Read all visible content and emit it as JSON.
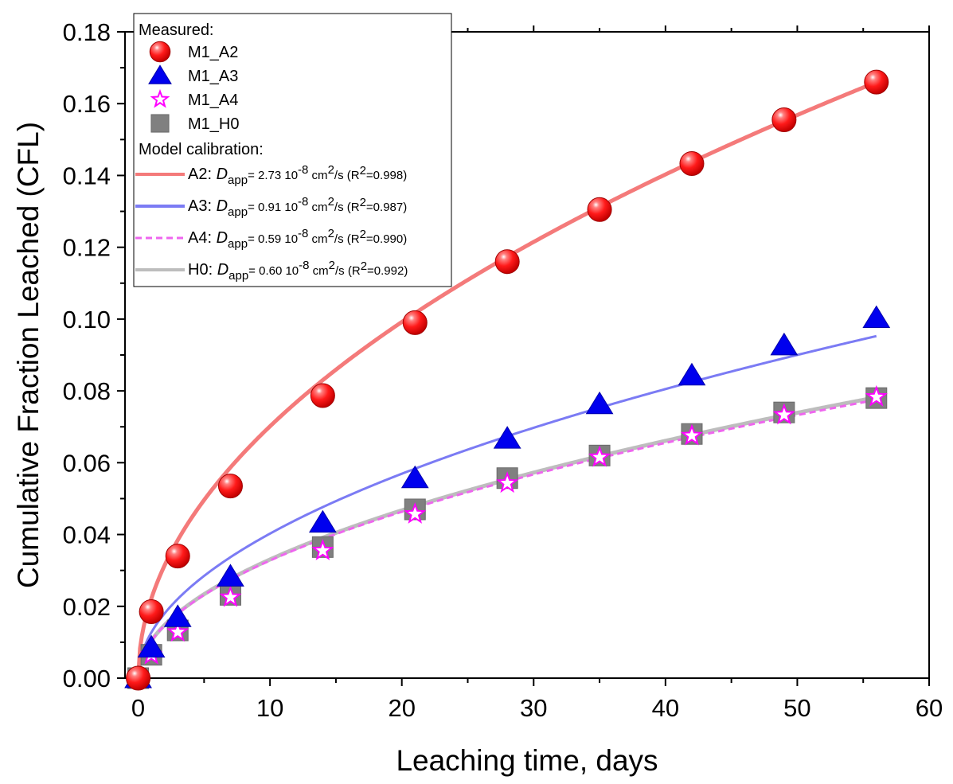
{
  "chart_data": {
    "type": "scatter",
    "xlabel": "Leaching time, days",
    "ylabel": "Cumulative Fraction Leached (CFL)",
    "xlim": [
      -1,
      60
    ],
    "ylim": [
      0,
      0.18
    ],
    "x_ticks": [
      "0",
      "10",
      "20",
      "30",
      "40",
      "50",
      "60"
    ],
    "y_ticks": [
      "0.00",
      "0.02",
      "0.04",
      "0.06",
      "0.08",
      "0.10",
      "0.12",
      "0.14",
      "0.16",
      "0.18"
    ],
    "x": [
      0,
      1,
      3,
      7,
      14,
      21,
      28,
      35,
      42,
      49,
      56
    ],
    "series": [
      {
        "name": "M1_A2",
        "marker": "sphere",
        "color": "#ff1a1a",
        "values": [
          0.0,
          0.0185,
          0.034,
          0.0535,
          0.0787,
          0.099,
          0.116,
          0.1305,
          0.1433,
          0.1555,
          0.166
        ]
      },
      {
        "name": "M1_A3",
        "marker": "triangle",
        "color": "#0000ee",
        "values": [
          0.0,
          0.0085,
          0.017,
          0.0283,
          0.0433,
          0.0557,
          0.0667,
          0.0763,
          0.0843,
          0.0927,
          0.1003
        ]
      },
      {
        "name": "M1_A4",
        "marker": "star",
        "color": "#ff00ff",
        "values": [
          0.0,
          0.0065,
          0.0128,
          0.0225,
          0.0355,
          0.0457,
          0.0543,
          0.0615,
          0.0675,
          0.0733,
          0.0783
        ]
      },
      {
        "name": "M1_H0",
        "marker": "square",
        "color": "#808080",
        "values": [
          0.0,
          0.0065,
          0.0133,
          0.0232,
          0.0365,
          0.047,
          0.0557,
          0.062,
          0.068,
          0.074,
          0.078
        ]
      }
    ],
    "models": [
      {
        "id": "A2",
        "color": "#f47a7a",
        "dash": "",
        "coef": 0.02218,
        "label_prefix": "A2: ",
        "d": "D",
        "sub": "app",
        "val": "= 2.73  10",
        "exp": "-8",
        "unit": " cm",
        "unit_exp": "2",
        "unit_rest": "/s",
        "r2": " (R",
        "r2_exp": "2",
        "r2_val": "=0.998)"
      },
      {
        "id": "A3",
        "color": "#7b7bf4",
        "dash": "",
        "coef": 0.01273,
        "label_prefix": "A3: ",
        "d": "D",
        "sub": "app",
        "val": "= 0.91 10",
        "exp": "-8",
        "unit": " cm",
        "unit_exp": "2",
        "unit_rest": "/s",
        "r2": " (R",
        "r2_exp": "2",
        "r2_val": "=0.987)"
      },
      {
        "id": "A4",
        "color": "#ee66ee",
        "dash": "8,5",
        "coef": 0.01036,
        "label_prefix": "A4: ",
        "d": "D",
        "sub": "app",
        "val": "= 0.59 10",
        "exp": "-8",
        "unit": " cm",
        "unit_exp": "2",
        "unit_rest": "/s",
        "r2": " (R",
        "r2_exp": "2",
        "r2_val": "=0.990)"
      },
      {
        "id": "H0",
        "color": "#bdbdbd",
        "dash": "",
        "coef": 0.01045,
        "label_prefix": "H0: ",
        "d": "D",
        "sub": "app",
        "val": "= 0.60 10",
        "exp": "-8",
        "unit": " cm",
        "unit_exp": "2",
        "unit_rest": "/s",
        "r2": " (R",
        "r2_exp": "2",
        "r2_val": "=0.992)"
      }
    ],
    "legend": {
      "position": "top-left",
      "measured_title": "Measured:",
      "model_title": "Model calibration:"
    }
  }
}
